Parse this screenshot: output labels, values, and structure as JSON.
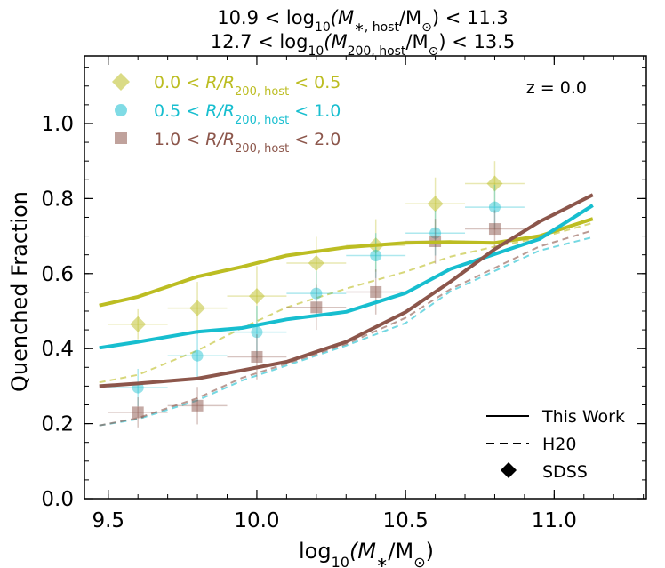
{
  "chart_data": {
    "type": "line",
    "title": {
      "line1": {
        "lo": "10.9",
        "mid": "log",
        "sub": "10",
        "open": "(M",
        "msub": "∗, host",
        "unit": "/M",
        "sun": "⊙",
        "close": ")",
        "hi": "11.3"
      },
      "line2": {
        "lo": "12.7",
        "mid": "log",
        "sub": "10",
        "open": "(M",
        "msub": "200, host",
        "unit": "/M",
        "sun": "⊙",
        "close": ")",
        "hi": "13.5"
      }
    },
    "xlabel": {
      "pre": "log",
      "sub": "10",
      "open": "(M",
      "msub": "∗",
      "unit": "/M",
      "sun": "⊙",
      "close": ")"
    },
    "ylabel": "Quenched Fraction",
    "annotation": "z = 0.0",
    "xlim": [
      9.42,
      11.31
    ],
    "ylim": [
      0.0,
      1.18
    ],
    "x_ticks": [
      "9.5",
      "10.0",
      "10.5",
      "11.0"
    ],
    "y_ticks": [
      "0.0",
      "0.2",
      "0.4",
      "0.6",
      "0.8",
      "1.0"
    ],
    "x_tick_values": [
      9.5,
      10.0,
      10.5,
      11.0
    ],
    "y_tick_values": [
      0.0,
      0.2,
      0.4,
      0.6,
      0.8,
      1.0
    ],
    "legend_bins": [
      {
        "lo": "0.0",
        "hi": "0.5",
        "var": "R/R",
        "vsub": "200, host",
        "color": "#bcbd22",
        "marker": "diamond"
      },
      {
        "lo": "0.5",
        "hi": "1.0",
        "var": "R/R",
        "vsub": "200, host",
        "color": "#17becf",
        "marker": "circle"
      },
      {
        "lo": "1.0",
        "hi": "2.0",
        "var": "R/R",
        "vsub": "200, host",
        "color": "#8c564b",
        "marker": "square"
      }
    ],
    "legend_styles": [
      "This Work",
      "H20",
      "SDSS"
    ],
    "series": [
      {
        "color": "#bcbd22",
        "this_work": {
          "x": [
            9.47,
            9.6,
            9.8,
            9.95,
            10.1,
            10.3,
            10.5,
            10.65,
            10.8,
            10.95,
            11.13
          ],
          "y": [
            0.515,
            0.538,
            0.592,
            0.618,
            0.648,
            0.67,
            0.682,
            0.684,
            0.682,
            0.7,
            0.746
          ]
        },
        "h20": {
          "x": [
            9.47,
            9.6,
            9.8,
            9.95,
            10.1,
            10.3,
            10.5,
            10.65,
            10.8,
            10.95,
            11.13
          ],
          "y": [
            0.31,
            0.33,
            0.395,
            0.455,
            0.51,
            0.56,
            0.605,
            0.645,
            0.672,
            0.695,
            0.735
          ]
        },
        "sdss": {
          "x": [
            9.6,
            9.8,
            10.0,
            10.2,
            10.4,
            10.6,
            10.8
          ],
          "y": [
            0.465,
            0.508,
            0.54,
            0.628,
            0.675,
            0.786,
            0.84
          ],
          "yerr": [
            0.04,
            0.07,
            0.08,
            0.07,
            0.07,
            0.07,
            0.06
          ]
        }
      },
      {
        "color": "#17becf",
        "this_work": {
          "x": [
            9.47,
            9.6,
            9.8,
            9.95,
            10.1,
            10.3,
            10.5,
            10.65,
            10.8,
            10.95,
            11.13
          ],
          "y": [
            0.402,
            0.418,
            0.445,
            0.455,
            0.478,
            0.498,
            0.548,
            0.612,
            0.652,
            0.692,
            0.782
          ]
        },
        "h20": {
          "x": [
            9.47,
            9.6,
            9.8,
            9.95,
            10.1,
            10.3,
            10.5,
            10.65,
            10.8,
            10.95,
            11.13
          ],
          "y": [
            0.195,
            0.212,
            0.262,
            0.315,
            0.355,
            0.408,
            0.468,
            0.552,
            0.607,
            0.661,
            0.697
          ]
        },
        "sdss": {
          "x": [
            9.6,
            9.8,
            10.0,
            10.2,
            10.4,
            10.6,
            10.8
          ],
          "y": [
            0.296,
            0.381,
            0.444,
            0.547,
            0.648,
            0.708,
            0.777
          ],
          "yerr": [
            0.05,
            0.06,
            0.07,
            0.06,
            0.06,
            0.06,
            0.06
          ]
        }
      },
      {
        "color": "#8c564b",
        "this_work": {
          "x": [
            9.47,
            9.6,
            9.8,
            9.95,
            10.1,
            10.3,
            10.5,
            10.65,
            10.8,
            10.95,
            11.13
          ],
          "y": [
            0.3,
            0.307,
            0.32,
            0.342,
            0.365,
            0.418,
            0.497,
            0.578,
            0.665,
            0.738,
            0.81
          ]
        },
        "h20": {
          "x": [
            9.47,
            9.6,
            9.8,
            9.95,
            10.1,
            10.3,
            10.5,
            10.65,
            10.8,
            10.95,
            11.13
          ],
          "y": [
            0.195,
            0.215,
            0.268,
            0.322,
            0.36,
            0.412,
            0.482,
            0.558,
            0.615,
            0.672,
            0.715
          ]
        },
        "sdss": {
          "x": [
            9.6,
            9.8,
            10.0,
            10.2,
            10.4,
            10.6,
            10.8
          ],
          "y": [
            0.23,
            0.248,
            0.378,
            0.51,
            0.551,
            0.686,
            0.719
          ],
          "yerr": [
            0.04,
            0.05,
            0.06,
            0.06,
            0.06,
            0.06,
            0.05
          ]
        }
      }
    ],
    "sdss_xerr": 0.1
  }
}
